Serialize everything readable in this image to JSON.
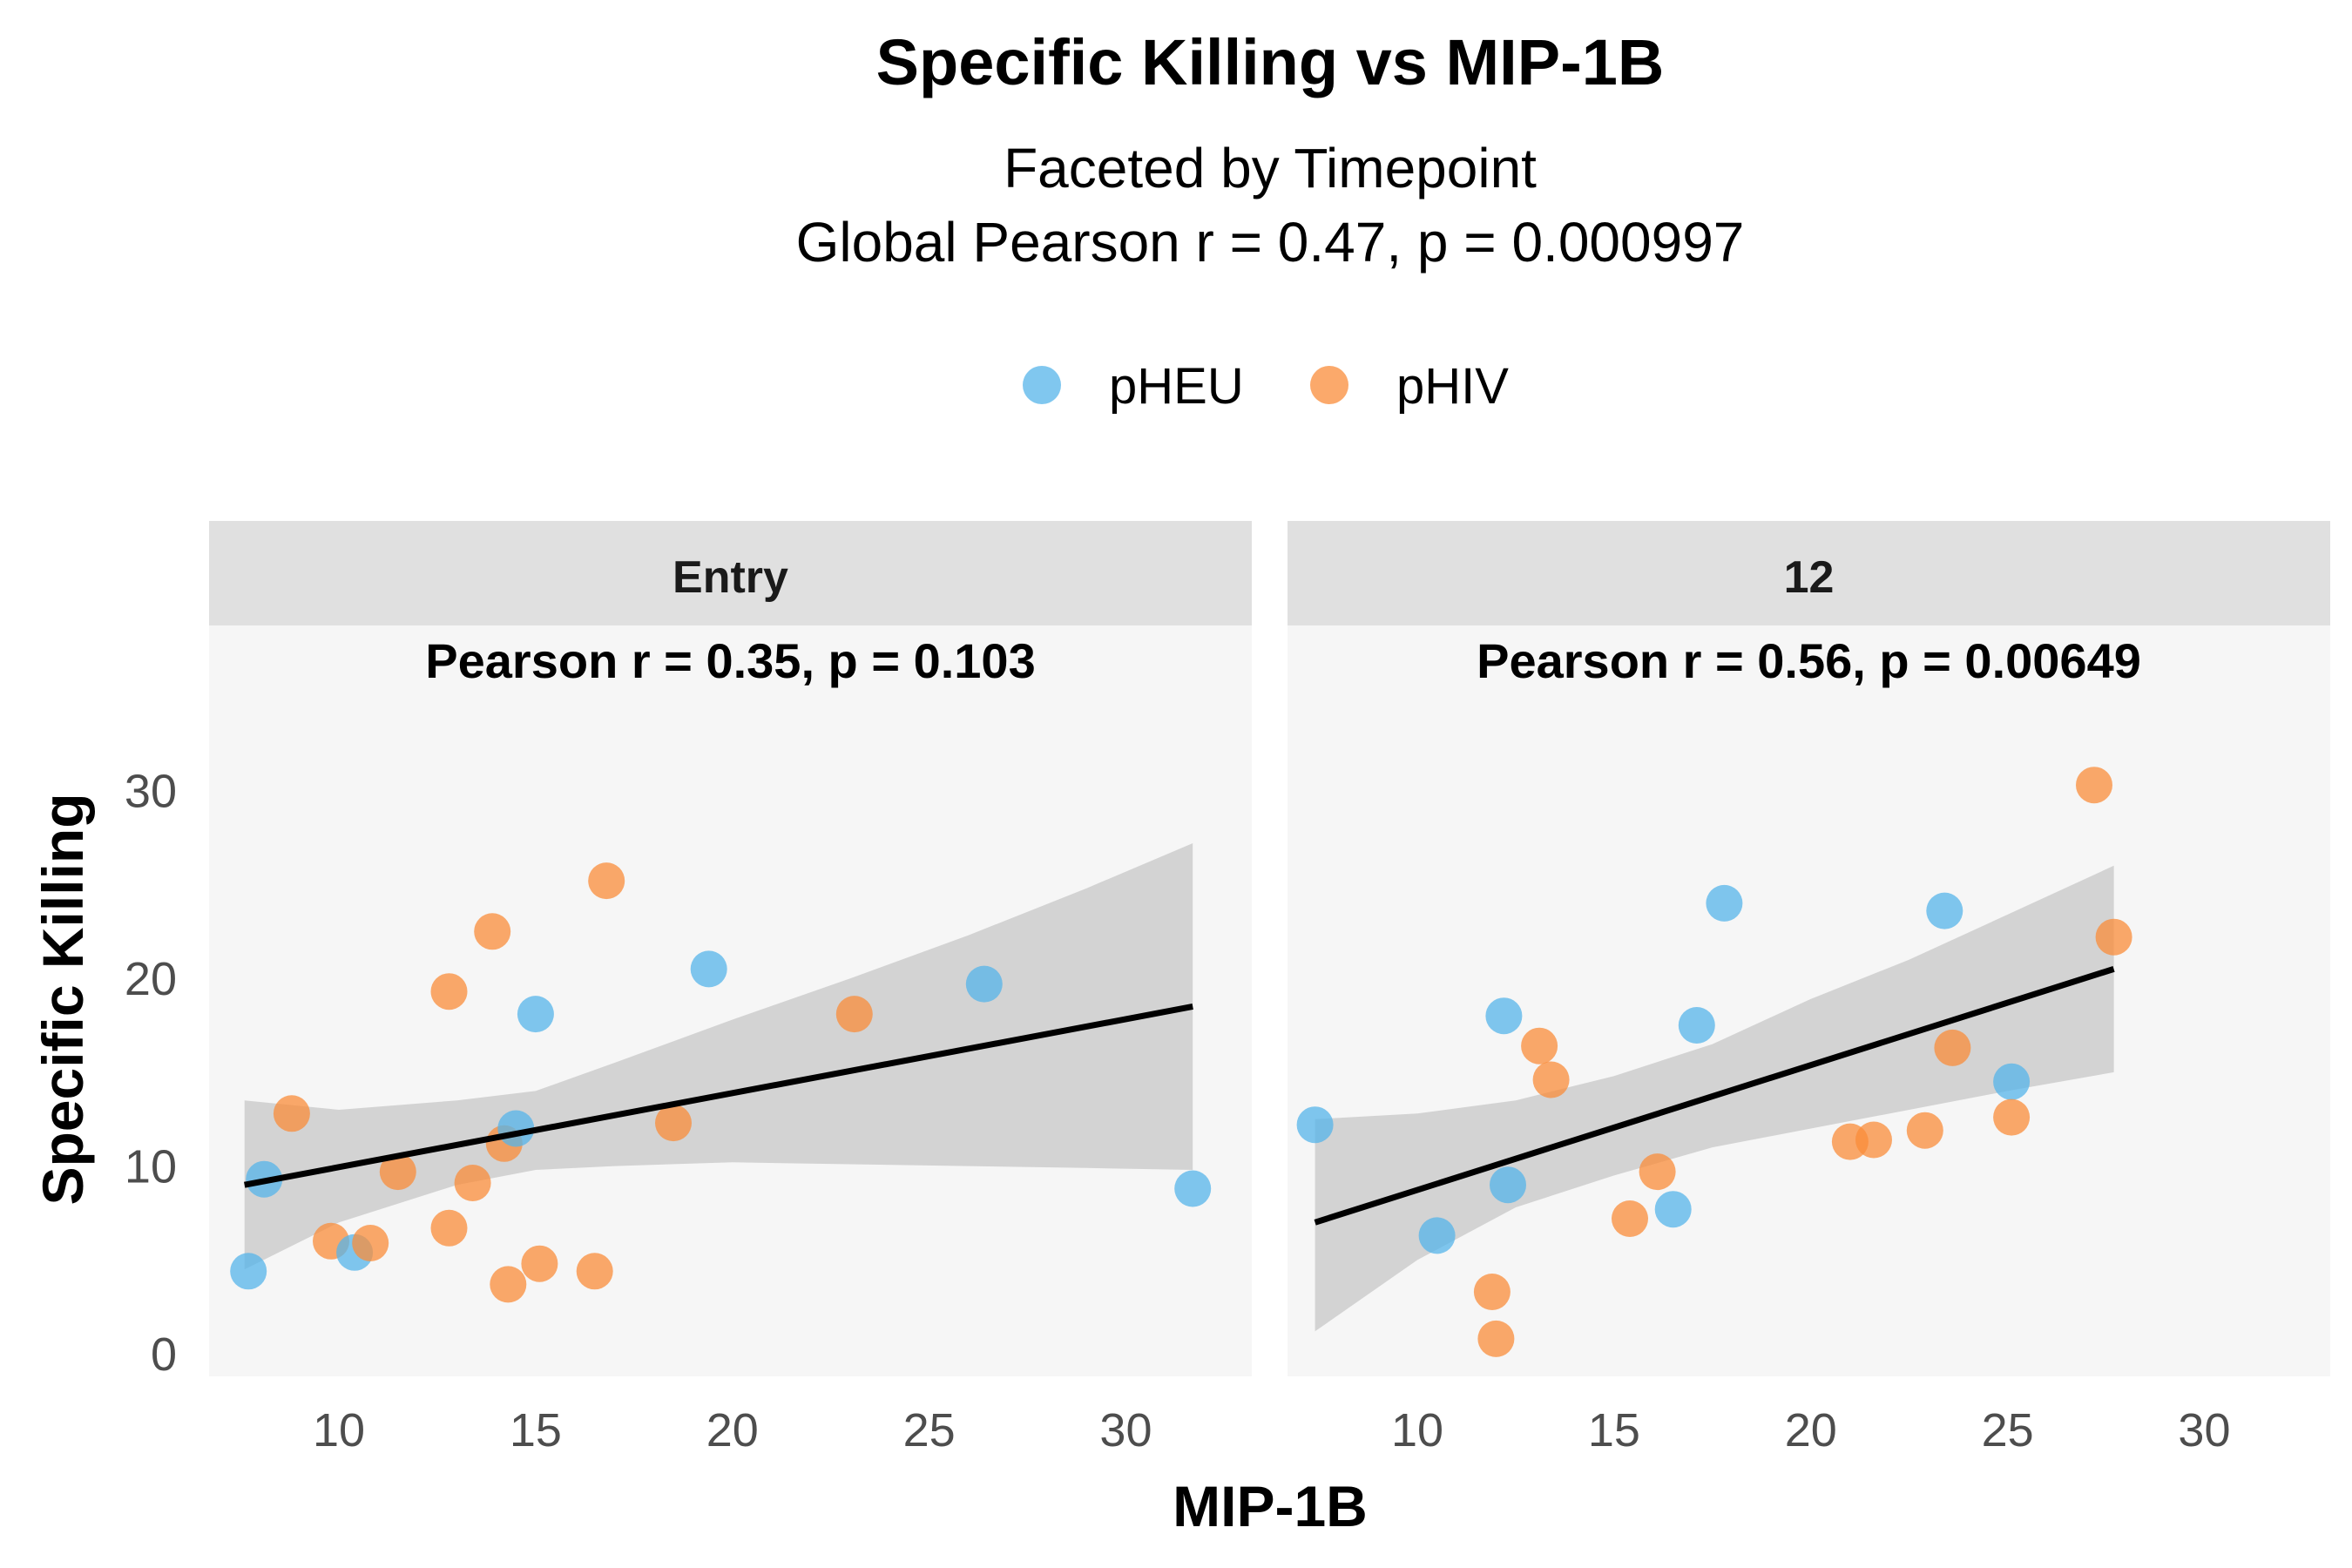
{
  "chart_data": {
    "type": "scatter",
    "title": "Specific Killing vs MIP-1B",
    "subtitle_lines": [
      "Faceted by Timepoint",
      "Global Pearson r = 0.47, p = 0.000997"
    ],
    "xlabel": "MIP-1B",
    "ylabel": "Specific Killing",
    "x_ticks": [
      10,
      15,
      20,
      25,
      30
    ],
    "y_ticks": [
      0,
      10,
      20,
      30
    ],
    "xlim": [
      6.7,
      33.2
    ],
    "ylim": [
      -1.2,
      38.8
    ],
    "legend": {
      "placement": "top",
      "entries": [
        {
          "name": "pHEU",
          "color": "#56B4E9"
        },
        {
          "name": "pHIV",
          "color": "#F98C3A"
        }
      ]
    },
    "panel_background": "#f6f6f6",
    "strip_background": "#e0e0e0",
    "ribbon_color": "#cccccc",
    "line_color": "#000000",
    "panels": [
      {
        "label": "Entry",
        "annotation": "Pearson r = 0.35, p = 0.103",
        "fit": {
          "x": [
            7.6,
            10,
            13,
            15,
            17,
            20,
            23,
            26,
            29,
            31.7
          ],
          "y": [
            9.0,
            9.9,
            11.0,
            11.8,
            12.5,
            13.6,
            14.7,
            15.8,
            17.0,
            18.5
          ],
          "lower": [
            4.5,
            7.0,
            9.0,
            9.8,
            10.0,
            10.2,
            10.1,
            10.0,
            9.9,
            9.8
          ],
          "upper": [
            13.5,
            13.0,
            13.5,
            14.0,
            15.5,
            17.8,
            20.0,
            22.3,
            24.8,
            27.2
          ]
        },
        "points": [
          {
            "x": 7.7,
            "y": 4.4,
            "group": "pHEU"
          },
          {
            "x": 8.1,
            "y": 9.3,
            "group": "pHEU"
          },
          {
            "x": 8.8,
            "y": 12.8,
            "group": "pHIV"
          },
          {
            "x": 9.8,
            "y": 6.0,
            "group": "pHIV"
          },
          {
            "x": 10.4,
            "y": 5.4,
            "group": "pHEU"
          },
          {
            "x": 10.8,
            "y": 5.9,
            "group": "pHIV"
          },
          {
            "x": 11.5,
            "y": 9.7,
            "group": "pHIV"
          },
          {
            "x": 12.8,
            "y": 19.3,
            "group": "pHIV"
          },
          {
            "x": 12.8,
            "y": 6.7,
            "group": "pHIV"
          },
          {
            "x": 13.4,
            "y": 9.1,
            "group": "pHIV"
          },
          {
            "x": 13.9,
            "y": 22.5,
            "group": "pHIV"
          },
          {
            "x": 14.2,
            "y": 11.2,
            "group": "pHIV"
          },
          {
            "x": 14.3,
            "y": 3.7,
            "group": "pHIV"
          },
          {
            "x": 14.5,
            "y": 12.0,
            "group": "pHEU"
          },
          {
            "x": 15.0,
            "y": 18.1,
            "group": "pHEU"
          },
          {
            "x": 15.1,
            "y": 4.8,
            "group": "pHIV"
          },
          {
            "x": 16.5,
            "y": 4.4,
            "group": "pHIV"
          },
          {
            "x": 16.8,
            "y": 25.2,
            "group": "pHIV"
          },
          {
            "x": 18.5,
            "y": 12.3,
            "group": "pHIV"
          },
          {
            "x": 19.4,
            "y": 20.5,
            "group": "pHEU"
          },
          {
            "x": 23.1,
            "y": 18.1,
            "group": "pHIV"
          },
          {
            "x": 26.4,
            "y": 19.7,
            "group": "pHEU"
          },
          {
            "x": 31.7,
            "y": 8.8,
            "group": "pHEU"
          }
        ]
      },
      {
        "label": "12",
        "annotation": "Pearson r = 0.56, p = 0.00649",
        "fit": {
          "x": [
            7.4,
            10,
            12.5,
            15,
            17.5,
            20,
            22.5,
            25,
            27.7
          ],
          "y": [
            7.0,
            8.7,
            10.4,
            12.0,
            13.7,
            15.4,
            17.0,
            18.7,
            20.5
          ],
          "lower": [
            1.2,
            5.0,
            7.8,
            9.5,
            11.0,
            12.0,
            13.0,
            14.0,
            15.0
          ],
          "upper": [
            12.5,
            12.8,
            13.5,
            14.8,
            16.5,
            18.9,
            21.0,
            23.4,
            26.0
          ]
        },
        "points": [
          {
            "x": 7.4,
            "y": 12.2,
            "group": "pHEU"
          },
          {
            "x": 10.5,
            "y": 6.3,
            "group": "pHEU"
          },
          {
            "x": 11.9,
            "y": 3.3,
            "group": "pHIV"
          },
          {
            "x": 12.0,
            "y": 0.8,
            "group": "pHIV"
          },
          {
            "x": 12.2,
            "y": 18.0,
            "group": "pHEU"
          },
          {
            "x": 12.3,
            "y": 9.0,
            "group": "pHEU"
          },
          {
            "x": 13.1,
            "y": 16.4,
            "group": "pHIV"
          },
          {
            "x": 13.4,
            "y": 14.6,
            "group": "pHIV"
          },
          {
            "x": 15.4,
            "y": 7.2,
            "group": "pHIV"
          },
          {
            "x": 16.1,
            "y": 9.7,
            "group": "pHIV"
          },
          {
            "x": 16.5,
            "y": 7.7,
            "group": "pHEU"
          },
          {
            "x": 17.1,
            "y": 17.5,
            "group": "pHEU"
          },
          {
            "x": 17.8,
            "y": 24.0,
            "group": "pHEU"
          },
          {
            "x": 21.0,
            "y": 11.3,
            "group": "pHIV"
          },
          {
            "x": 21.6,
            "y": 11.4,
            "group": "pHIV"
          },
          {
            "x": 22.9,
            "y": 11.9,
            "group": "pHIV"
          },
          {
            "x": 23.4,
            "y": 23.6,
            "group": "pHEU"
          },
          {
            "x": 23.6,
            "y": 16.3,
            "group": "pHIV"
          },
          {
            "x": 25.1,
            "y": 14.5,
            "group": "pHEU"
          },
          {
            "x": 25.1,
            "y": 12.6,
            "group": "pHIV"
          },
          {
            "x": 27.2,
            "y": 30.3,
            "group": "pHIV"
          },
          {
            "x": 27.7,
            "y": 22.2,
            "group": "pHIV"
          }
        ]
      }
    ]
  }
}
